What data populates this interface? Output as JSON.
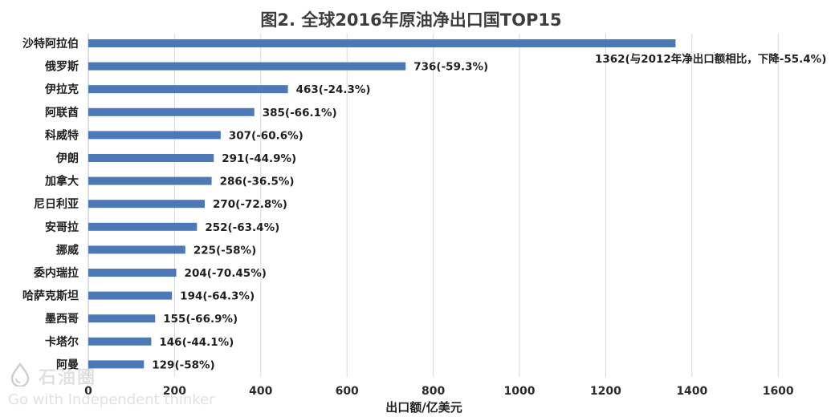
{
  "chart_data": {
    "type": "bar",
    "orientation": "horizontal",
    "title": "图2. 全球2016年原油净出口国TOP15",
    "xlabel": "出口额/亿美元",
    "ylabel": "",
    "xlim": [
      0,
      1700
    ],
    "xticks": [
      0,
      200,
      400,
      600,
      800,
      1000,
      1200,
      1400,
      1600
    ],
    "grid": "vertical",
    "bar_color": "#4a78b8",
    "categories": [
      "沙特阿拉伯",
      "俄罗斯",
      "伊拉克",
      "阿联酋",
      "科威特",
      "伊朗",
      "加拿大",
      "尼日利亚",
      "安哥拉",
      "挪威",
      "委内瑞拉",
      "哈萨克斯坦",
      "墨西哥",
      "卡塔尔",
      "阿曼"
    ],
    "values": [
      1362,
      736,
      463,
      385,
      307,
      291,
      286,
      270,
      252,
      225,
      204,
      194,
      155,
      146,
      129
    ],
    "data_labels": [
      "1362(与2012年净出口额相比，下降-55.4%)",
      "736(-59.3%)",
      "463(-24.3%)",
      "385(-66.1%)",
      "307(-60.6%)",
      "291(-44.9%)",
      "286(-36.5%)",
      "270(-72.8%)",
      "252(-63.4%)",
      "225(-58%)",
      "204(-70.45%)",
      "194(-64.3%)",
      "155(-66.9%)",
      "146(-44.1%)",
      "129(-58%)"
    ]
  },
  "watermark": {
    "logo_icon": "droplet-logo-icon",
    "name": "石油圈",
    "slogan": "Go with Independent thinker"
  }
}
